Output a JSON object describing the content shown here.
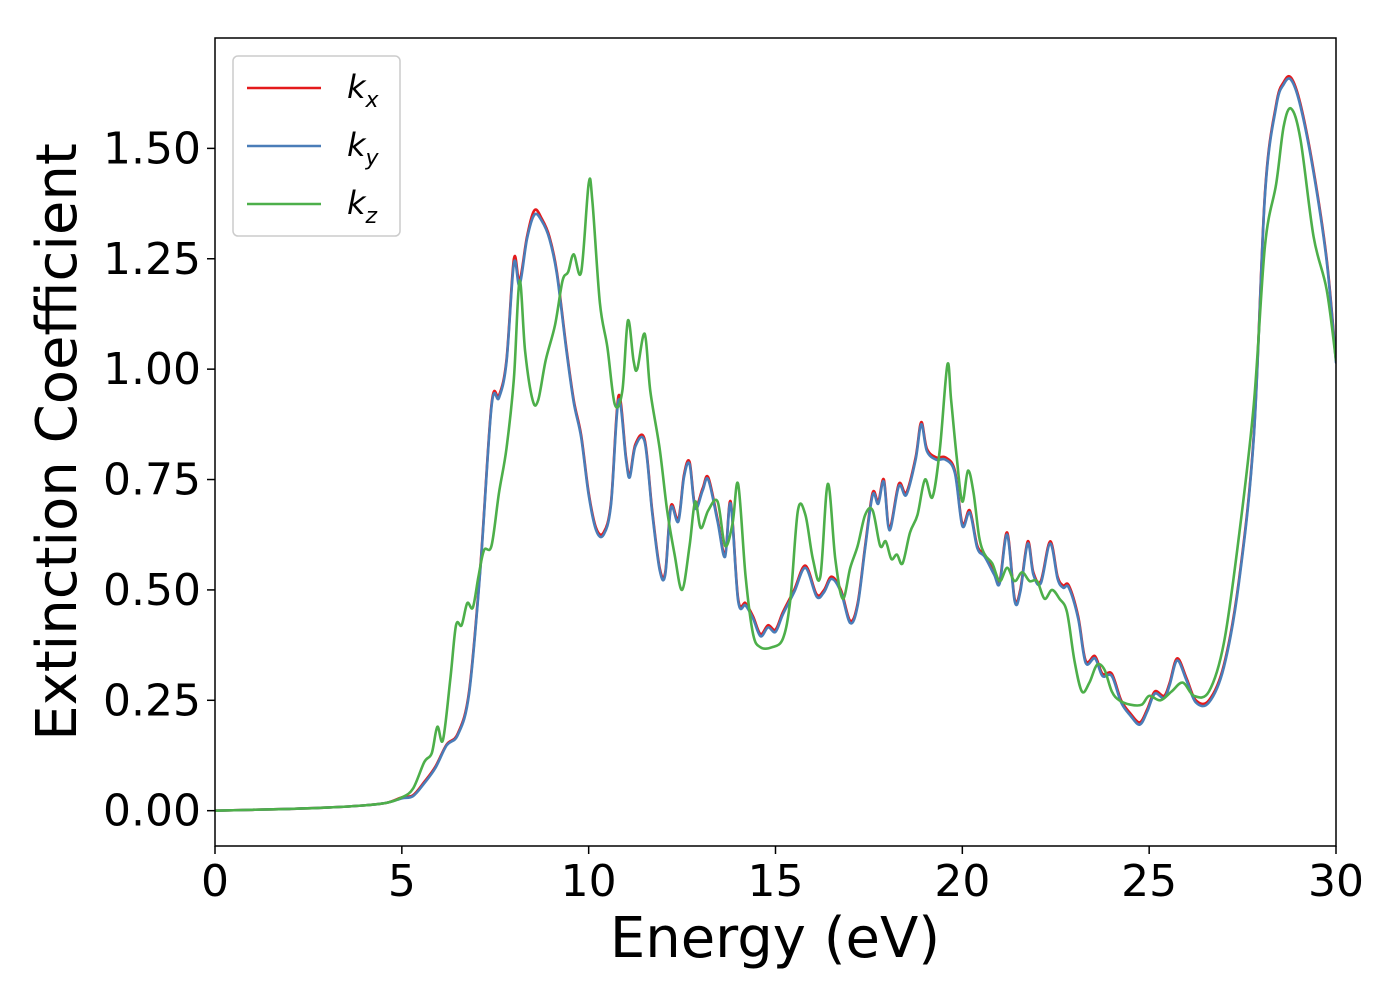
{
  "chart_data": {
    "type": "line",
    "title": "",
    "xlabel": "Energy (eV)",
    "ylabel": "Extinction Coefficient",
    "xlim": [
      0,
      30
    ],
    "ylim": [
      -0.08,
      1.75
    ],
    "xticks": [
      0,
      5,
      10,
      15,
      20,
      25,
      30
    ],
    "yticks": [
      0.0,
      0.25,
      0.5,
      0.75,
      1.0,
      1.25,
      1.5
    ],
    "ytick_format": "2dp",
    "grid": false,
    "legend_position": "top-left",
    "series": [
      {
        "name": "k_x",
        "color": "#e41a1c",
        "x": [
          0,
          1,
          2,
          3,
          4,
          4.6,
          5.0,
          5.3,
          5.6,
          5.9,
          6.2,
          6.5,
          6.8,
          7.1,
          7.4,
          7.6,
          7.8,
          8.0,
          8.15,
          8.35,
          8.55,
          8.75,
          8.95,
          9.15,
          9.4,
          9.6,
          9.8,
          10.0,
          10.2,
          10.4,
          10.6,
          10.8,
          11.0,
          11.1,
          11.25,
          11.5,
          11.7,
          11.9,
          12.05,
          12.2,
          12.4,
          12.55,
          12.7,
          12.85,
          13.05,
          13.2,
          13.45,
          13.65,
          13.8,
          14.0,
          14.2,
          14.4,
          14.6,
          14.8,
          15.0,
          15.2,
          15.5,
          15.8,
          16.1,
          16.3,
          16.5,
          16.75,
          17.0,
          17.2,
          17.4,
          17.6,
          17.75,
          17.9,
          18.05,
          18.3,
          18.5,
          18.75,
          18.9,
          19.05,
          19.3,
          19.55,
          19.8,
          20.0,
          20.2,
          20.4,
          20.6,
          20.85,
          21.0,
          21.2,
          21.4,
          21.55,
          21.75,
          21.9,
          22.1,
          22.35,
          22.55,
          22.7,
          22.85,
          23.1,
          23.3,
          23.55,
          23.75,
          24.0,
          24.25,
          24.5,
          24.75,
          24.95,
          25.15,
          25.4,
          25.55,
          25.75,
          26.0,
          26.25,
          26.6,
          27.0,
          27.4,
          27.8,
          28.1,
          28.4,
          28.6,
          28.8,
          29.05,
          29.4,
          29.75,
          30.0
        ],
        "y": [
          0,
          0.002,
          0.004,
          0.007,
          0.012,
          0.018,
          0.03,
          0.035,
          0.065,
          0.1,
          0.15,
          0.175,
          0.27,
          0.55,
          0.92,
          0.94,
          1.02,
          1.25,
          1.2,
          1.3,
          1.36,
          1.34,
          1.3,
          1.22,
          1.05,
          0.93,
          0.85,
          0.72,
          0.64,
          0.63,
          0.7,
          0.94,
          0.8,
          0.76,
          0.83,
          0.84,
          0.68,
          0.55,
          0.54,
          0.69,
          0.66,
          0.76,
          0.79,
          0.69,
          0.73,
          0.755,
          0.66,
          0.58,
          0.7,
          0.48,
          0.47,
          0.44,
          0.4,
          0.42,
          0.41,
          0.45,
          0.5,
          0.555,
          0.49,
          0.5,
          0.53,
          0.5,
          0.43,
          0.47,
          0.6,
          0.72,
          0.7,
          0.75,
          0.64,
          0.74,
          0.72,
          0.8,
          0.88,
          0.82,
          0.8,
          0.8,
          0.77,
          0.65,
          0.68,
          0.6,
          0.58,
          0.54,
          0.52,
          0.63,
          0.48,
          0.5,
          0.61,
          0.54,
          0.52,
          0.61,
          0.53,
          0.51,
          0.51,
          0.44,
          0.34,
          0.35,
          0.31,
          0.31,
          0.25,
          0.22,
          0.2,
          0.23,
          0.27,
          0.26,
          0.29,
          0.345,
          0.3,
          0.25,
          0.25,
          0.33,
          0.52,
          0.85,
          1.4,
          1.6,
          1.65,
          1.66,
          1.6,
          1.45,
          1.25,
          1.02
        ]
      },
      {
        "name": "k_y",
        "color": "#4a7db8",
        "x": [
          0,
          1,
          2,
          3,
          4,
          4.6,
          5.0,
          5.3,
          5.6,
          5.9,
          6.2,
          6.5,
          6.8,
          7.1,
          7.4,
          7.6,
          7.8,
          8.0,
          8.15,
          8.35,
          8.55,
          8.75,
          8.95,
          9.15,
          9.4,
          9.6,
          9.8,
          10.0,
          10.2,
          10.4,
          10.6,
          10.8,
          11.0,
          11.1,
          11.25,
          11.5,
          11.7,
          11.9,
          12.05,
          12.2,
          12.4,
          12.55,
          12.7,
          12.85,
          13.05,
          13.2,
          13.45,
          13.65,
          13.8,
          14.0,
          14.2,
          14.4,
          14.6,
          14.8,
          15.0,
          15.2,
          15.5,
          15.8,
          16.1,
          16.3,
          16.5,
          16.75,
          17.0,
          17.2,
          17.4,
          17.6,
          17.75,
          17.9,
          18.05,
          18.3,
          18.5,
          18.75,
          18.9,
          19.05,
          19.3,
          19.55,
          19.8,
          20.0,
          20.2,
          20.4,
          20.6,
          20.85,
          21.0,
          21.2,
          21.4,
          21.55,
          21.75,
          21.9,
          22.1,
          22.35,
          22.55,
          22.7,
          22.85,
          23.1,
          23.3,
          23.55,
          23.75,
          24.0,
          24.25,
          24.5,
          24.75,
          24.95,
          25.15,
          25.4,
          25.55,
          25.75,
          26.0,
          26.25,
          26.6,
          27.0,
          27.4,
          27.8,
          28.1,
          28.4,
          28.6,
          28.8,
          29.05,
          29.4,
          29.75,
          30.0
        ],
        "y": [
          0,
          0.002,
          0.004,
          0.007,
          0.012,
          0.018,
          0.028,
          0.033,
          0.062,
          0.097,
          0.148,
          0.172,
          0.265,
          0.545,
          0.915,
          0.935,
          1.015,
          1.24,
          1.19,
          1.295,
          1.35,
          1.335,
          1.295,
          1.215,
          1.045,
          0.925,
          0.845,
          0.715,
          0.635,
          0.625,
          0.695,
          0.93,
          0.795,
          0.755,
          0.825,
          0.835,
          0.675,
          0.545,
          0.535,
          0.685,
          0.655,
          0.755,
          0.785,
          0.685,
          0.725,
          0.75,
          0.655,
          0.575,
          0.695,
          0.475,
          0.465,
          0.435,
          0.395,
          0.415,
          0.405,
          0.445,
          0.495,
          0.55,
          0.485,
          0.495,
          0.525,
          0.495,
          0.425,
          0.465,
          0.595,
          0.715,
          0.695,
          0.745,
          0.635,
          0.735,
          0.715,
          0.795,
          0.875,
          0.815,
          0.795,
          0.795,
          0.765,
          0.645,
          0.675,
          0.595,
          0.575,
          0.535,
          0.515,
          0.625,
          0.475,
          0.495,
          0.605,
          0.535,
          0.515,
          0.605,
          0.525,
          0.505,
          0.505,
          0.435,
          0.335,
          0.345,
          0.305,
          0.305,
          0.245,
          0.215,
          0.195,
          0.225,
          0.265,
          0.255,
          0.285,
          0.34,
          0.295,
          0.245,
          0.245,
          0.325,
          0.515,
          0.845,
          1.395,
          1.595,
          1.645,
          1.655,
          1.595,
          1.445,
          1.245,
          1.015
        ]
      },
      {
        "name": "k_z",
        "color": "#4daf4a",
        "x": [
          0,
          1,
          2,
          3,
          4,
          4.6,
          5.0,
          5.3,
          5.6,
          5.8,
          5.95,
          6.1,
          6.3,
          6.45,
          6.6,
          6.75,
          6.9,
          7.05,
          7.2,
          7.4,
          7.6,
          7.8,
          8.0,
          8.15,
          8.3,
          8.5,
          8.65,
          8.85,
          9.1,
          9.3,
          9.45,
          9.6,
          9.8,
          10.0,
          10.1,
          10.3,
          10.5,
          10.7,
          10.9,
          11.05,
          11.2,
          11.3,
          11.5,
          11.65,
          11.9,
          12.1,
          12.3,
          12.5,
          12.7,
          12.85,
          13.0,
          13.2,
          13.45,
          13.65,
          13.85,
          14.0,
          14.2,
          14.4,
          14.6,
          14.9,
          15.2,
          15.4,
          15.6,
          15.8,
          16.0,
          16.2,
          16.4,
          16.6,
          16.8,
          17.0,
          17.2,
          17.4,
          17.6,
          17.8,
          17.95,
          18.1,
          18.25,
          18.4,
          18.6,
          18.8,
          19.0,
          19.2,
          19.4,
          19.6,
          19.7,
          19.85,
          20.0,
          20.15,
          20.3,
          20.45,
          20.6,
          20.8,
          21.0,
          21.2,
          21.4,
          21.6,
          21.8,
          22.0,
          22.2,
          22.4,
          22.6,
          22.8,
          23.0,
          23.2,
          23.4,
          23.6,
          23.8,
          24.0,
          24.2,
          24.5,
          24.8,
          25.0,
          25.3,
          25.6,
          25.9,
          26.2,
          26.6,
          27.0,
          27.4,
          27.8,
          28.1,
          28.4,
          28.6,
          28.8,
          29.05,
          29.4,
          29.75,
          30.0
        ],
        "y": [
          0,
          0.002,
          0.004,
          0.007,
          0.012,
          0.018,
          0.03,
          0.05,
          0.11,
          0.13,
          0.19,
          0.16,
          0.3,
          0.42,
          0.42,
          0.47,
          0.46,
          0.53,
          0.59,
          0.6,
          0.72,
          0.82,
          0.98,
          1.2,
          1.04,
          0.93,
          0.93,
          1.02,
          1.1,
          1.2,
          1.22,
          1.26,
          1.22,
          1.42,
          1.38,
          1.15,
          1.05,
          0.92,
          0.95,
          1.11,
          1.02,
          1.0,
          1.08,
          0.95,
          0.82,
          0.68,
          0.58,
          0.5,
          0.6,
          0.7,
          0.64,
          0.68,
          0.7,
          0.6,
          0.65,
          0.74,
          0.53,
          0.4,
          0.37,
          0.37,
          0.39,
          0.48,
          0.68,
          0.67,
          0.57,
          0.53,
          0.74,
          0.57,
          0.48,
          0.55,
          0.6,
          0.67,
          0.68,
          0.6,
          0.61,
          0.57,
          0.58,
          0.56,
          0.63,
          0.67,
          0.75,
          0.71,
          0.82,
          1.01,
          0.93,
          0.8,
          0.7,
          0.77,
          0.72,
          0.62,
          0.58,
          0.56,
          0.52,
          0.55,
          0.52,
          0.54,
          0.52,
          0.52,
          0.48,
          0.5,
          0.48,
          0.45,
          0.34,
          0.27,
          0.29,
          0.33,
          0.32,
          0.27,
          0.25,
          0.24,
          0.24,
          0.26,
          0.25,
          0.27,
          0.29,
          0.26,
          0.27,
          0.38,
          0.62,
          0.92,
          1.28,
          1.42,
          1.55,
          1.59,
          1.52,
          1.3,
          1.18,
          1.02
        ]
      }
    ]
  }
}
